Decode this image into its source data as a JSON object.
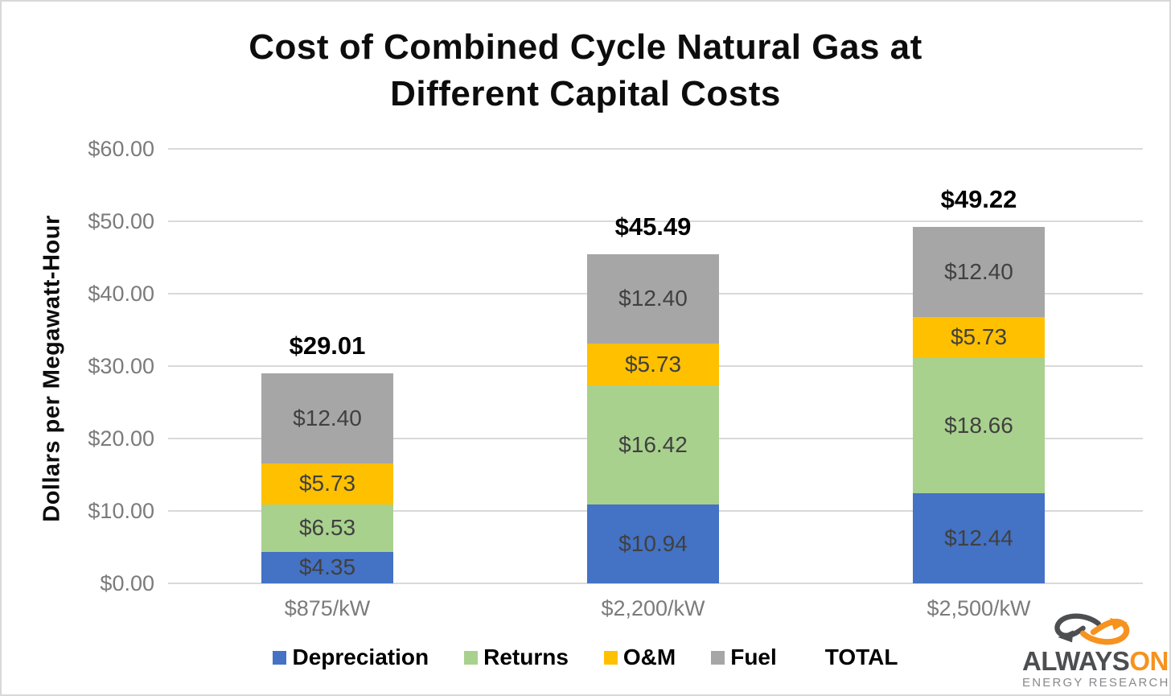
{
  "title": {
    "line1": "Cost of Combined Cycle Natural Gas at",
    "line2": "Different Capital Costs"
  },
  "y_axis": {
    "title": "Dollars per Megawatt-Hour",
    "ticks": [
      "$60.00",
      "$50.00",
      "$40.00",
      "$30.00",
      "$20.00",
      "$10.00",
      "$0.00"
    ]
  },
  "legend": {
    "items": [
      {
        "label": "Depreciation",
        "color": "#4472C4"
      },
      {
        "label": "Returns",
        "color": "#A9D18E"
      },
      {
        "label": "O&M",
        "color": "#FFC000"
      },
      {
        "label": "Fuel",
        "color": "#A6A6A6"
      },
      {
        "label": "TOTAL",
        "color": null
      }
    ]
  },
  "logo": {
    "brand_primary": "ALWAYS",
    "brand_accent": "ON",
    "subtitle": "ENERGY RESEARCH",
    "accent_color": "#F6921E",
    "dark_color": "#4D4E50"
  },
  "chart_data": {
    "type": "bar",
    "stacked": true,
    "title": "Cost of Combined Cycle Natural Gas at Different Capital Costs",
    "xlabel": "",
    "ylabel": "Dollars per Megawatt-Hour",
    "ylim": [
      0,
      60
    ],
    "ytick_step": 10,
    "grid": true,
    "legend_position": "bottom",
    "categories": [
      "$875/kW",
      "$2,200/kW",
      "$2,500/kW"
    ],
    "series": [
      {
        "name": "Depreciation",
        "color": "#4472C4",
        "values": [
          4.35,
          10.94,
          12.44
        ],
        "labels": [
          "$4.35",
          "$10.94",
          "$12.44"
        ]
      },
      {
        "name": "Returns",
        "color": "#A9D18E",
        "values": [
          6.53,
          16.42,
          18.66
        ],
        "labels": [
          "$6.53",
          "$16.42",
          "$18.66"
        ]
      },
      {
        "name": "O&M",
        "color": "#FFC000",
        "values": [
          5.73,
          5.73,
          5.73
        ],
        "labels": [
          "$5.73",
          "$5.73",
          "$5.73"
        ]
      },
      {
        "name": "Fuel",
        "color": "#A6A6A6",
        "values": [
          12.4,
          12.4,
          12.4
        ],
        "labels": [
          "$12.40",
          "$12.40",
          "$12.40"
        ]
      }
    ],
    "totals": [
      29.01,
      45.49,
      49.22
    ],
    "totals_display": [
      "$29.01",
      "$45.49",
      "$49.22"
    ]
  }
}
